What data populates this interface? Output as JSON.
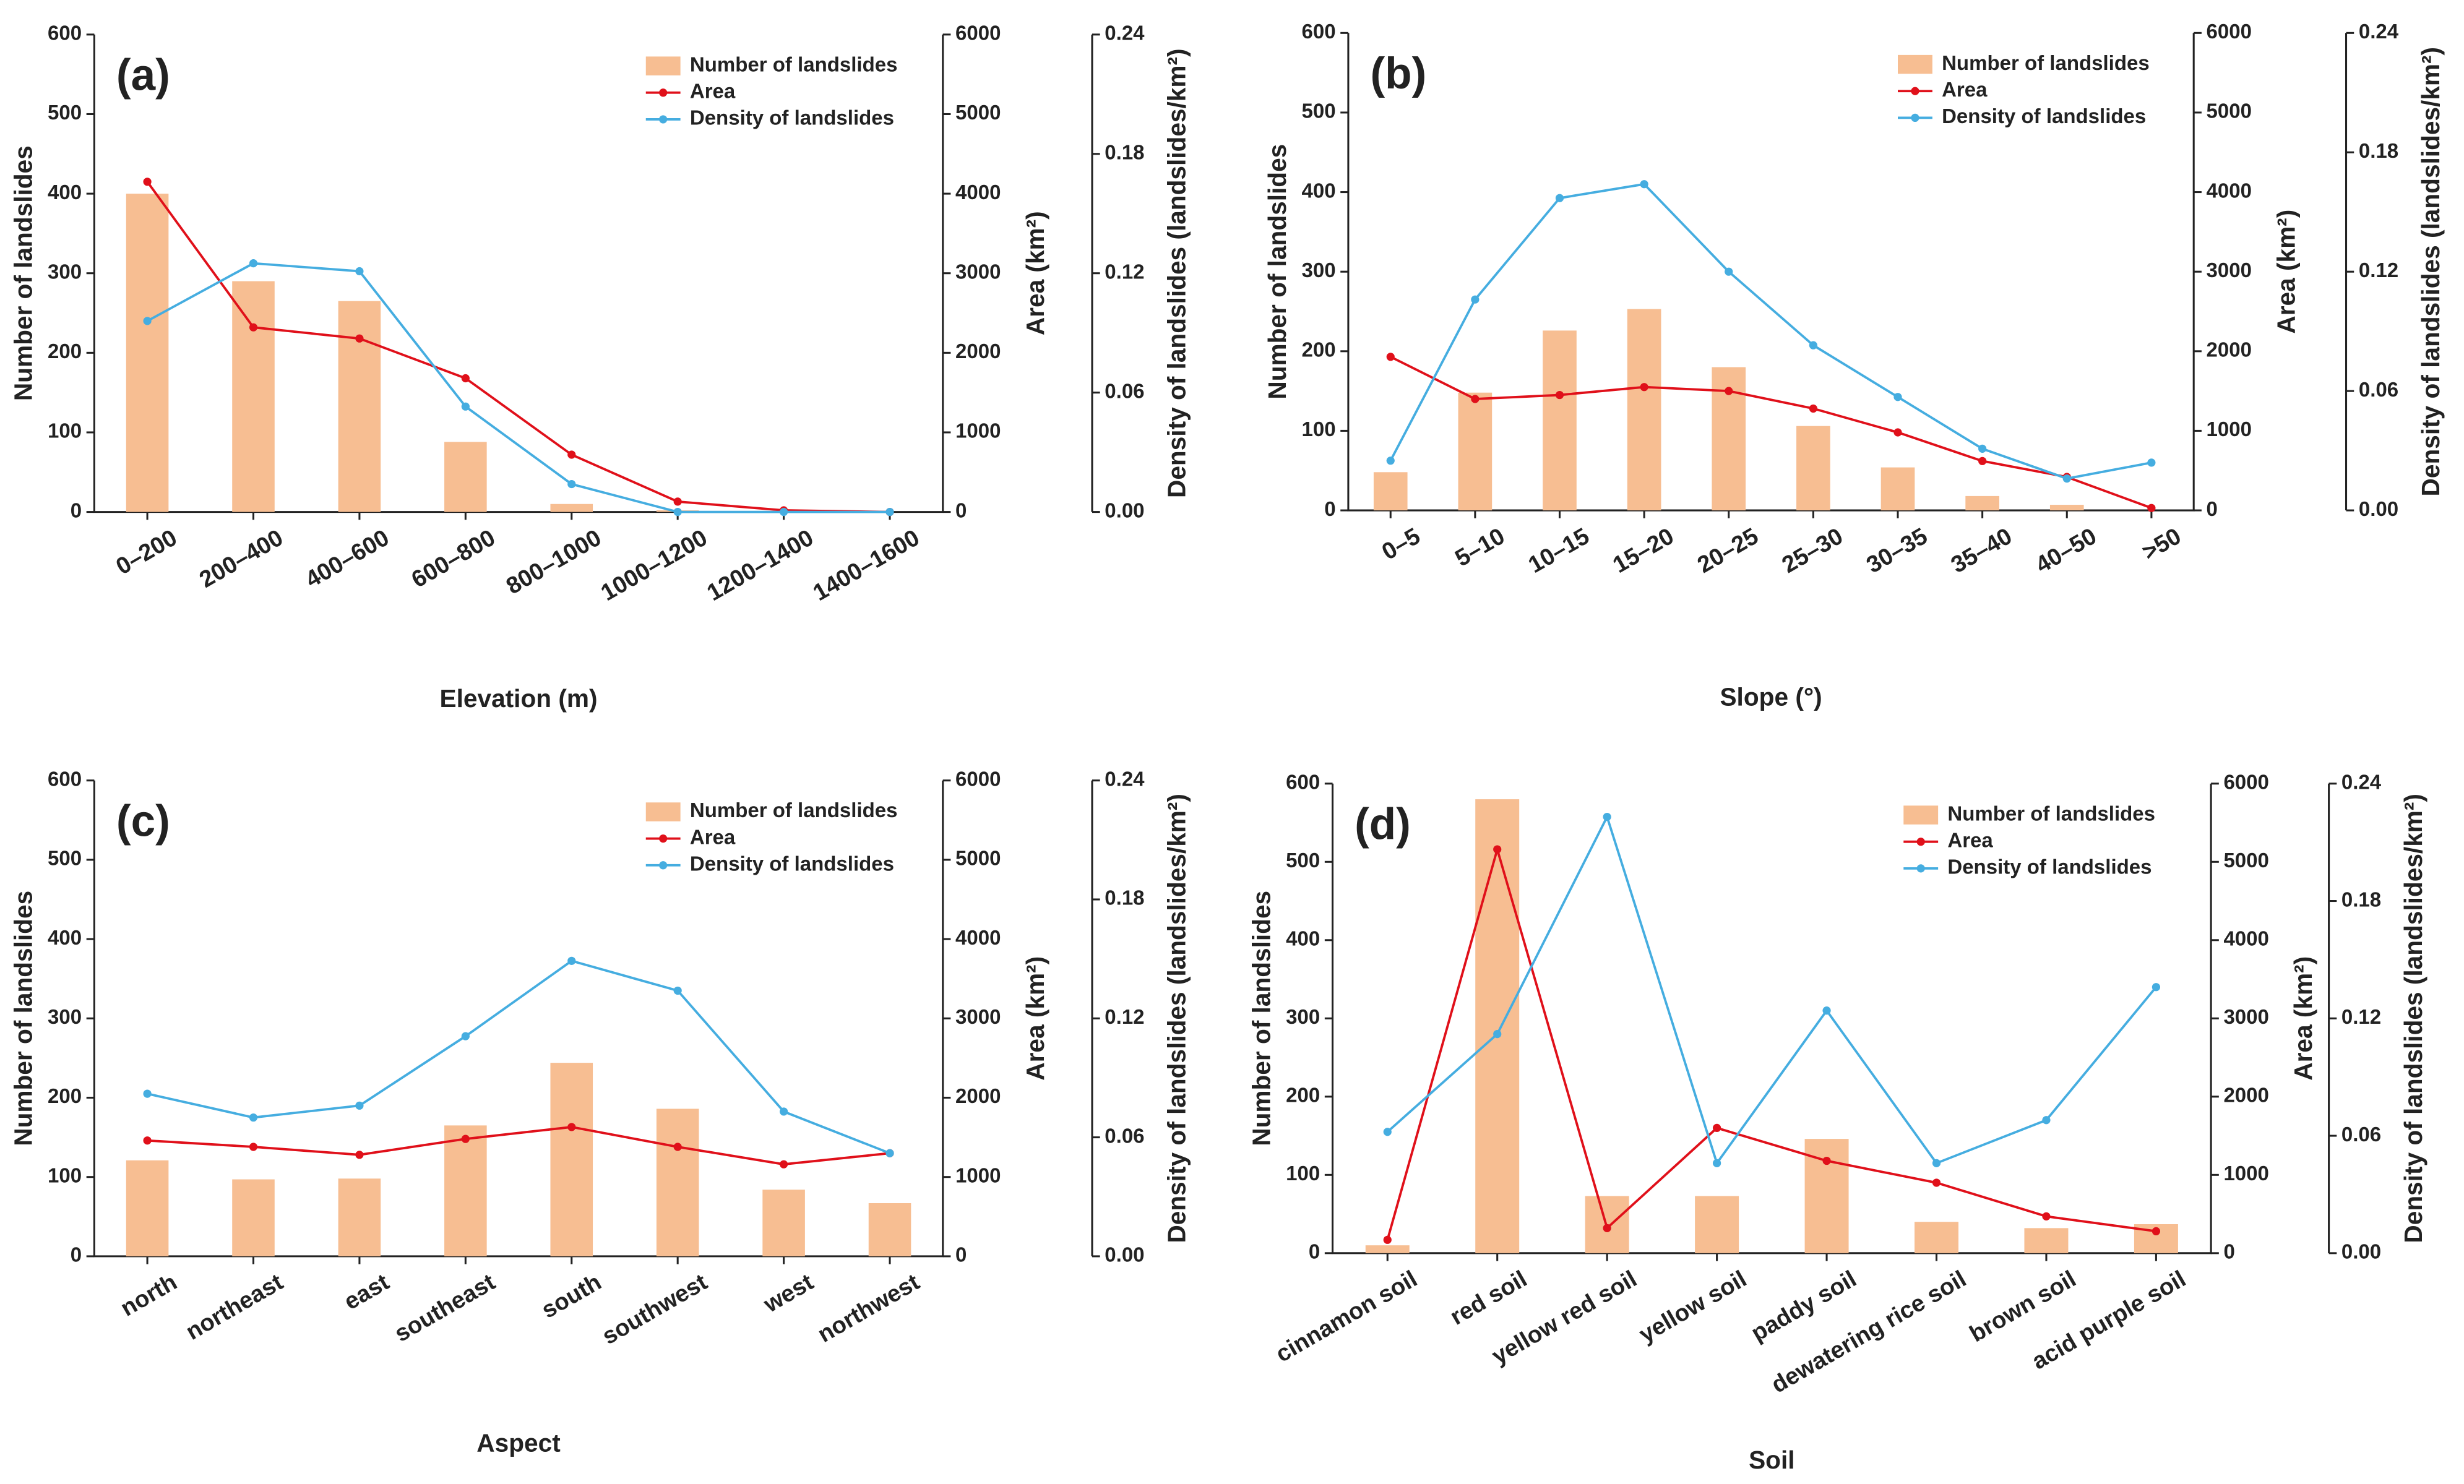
{
  "chart_data": [
    {
      "type": "combo",
      "panel_label": "(a)",
      "xlabel": "Elevation (m)",
      "ylabel": "Number of landslides",
      "y2label": "Area (km²)",
      "y3label": "Density of landslides (landslides/km²)",
      "legend": "upper right",
      "categories": [
        "0–200",
        "200–400",
        "400–600",
        "600–800",
        "800–1000",
        "1000–1200",
        "1200–1400",
        "1400–1600"
      ],
      "series": [
        {
          "name": "Number of landslides",
          "type": "bar",
          "axis": "y",
          "color": "#f7be92",
          "values": [
            400,
            290,
            265,
            88,
            10,
            2,
            0,
            0
          ]
        },
        {
          "name": "Area",
          "type": "line",
          "axis": "y2",
          "color": "#e0101a",
          "values": [
            4150,
            2320,
            2180,
            1680,
            720,
            130,
            20,
            0
          ]
        },
        {
          "name": "Density of landslides",
          "type": "line",
          "axis": "y3",
          "color": "#45ade0",
          "values": [
            0.096,
            0.125,
            0.121,
            0.053,
            0.014,
            0,
            0,
            0
          ]
        }
      ],
      "ylim": [
        0,
        600
      ],
      "yticks": [
        0,
        100,
        200,
        300,
        400,
        500,
        600
      ],
      "y2lim": [
        0,
        6000
      ],
      "y2ticks": [
        0,
        1000,
        2000,
        3000,
        4000,
        5000,
        6000
      ],
      "y3lim": [
        0,
        0.24
      ],
      "y3ticks": [
        {
          "value": 0,
          "label": "0.00"
        },
        0.06,
        0.12,
        0.18,
        0.24
      ]
    },
    {
      "type": "combo",
      "panel_label": "(b)",
      "xlabel": "Slope (°)",
      "ylabel": "Number of landslides",
      "y2label": "Area (km²)",
      "y3label": "Density of landslides (landslides/km²)",
      "legend": "upper right",
      "categories": [
        "0–5",
        "5–10",
        "10–15",
        "15–20",
        "20–25",
        "25–30",
        "30–35",
        "35–40",
        "40–50",
        ">50"
      ],
      "series": [
        {
          "name": "Number of landslides",
          "type": "bar",
          "axis": "y",
          "color": "#f7be92",
          "values": [
            48,
            148,
            226,
            253,
            180,
            106,
            54,
            18,
            7,
            0
          ]
        },
        {
          "name": "Area",
          "type": "line",
          "axis": "y2",
          "color": "#e0101a",
          "values": [
            1930,
            1400,
            1450,
            1550,
            1500,
            1280,
            980,
            620,
            420,
            30
          ]
        },
        {
          "name": "Density of landslides",
          "type": "line",
          "axis": "y3",
          "color": "#45ade0",
          "values": [
            0.025,
            0.106,
            0.157,
            0.164,
            0.12,
            0.083,
            0.057,
            0.031,
            0.016,
            0.024
          ]
        }
      ],
      "ylim": [
        0,
        600
      ],
      "yticks": [
        0,
        100,
        200,
        300,
        400,
        500,
        600
      ],
      "y2lim": [
        0,
        6000
      ],
      "y2ticks": [
        0,
        1000,
        2000,
        3000,
        4000,
        5000,
        6000
      ],
      "y3lim": [
        0,
        0.24
      ],
      "y3ticks": [
        {
          "value": 0,
          "label": "0.00"
        },
        0.06,
        0.12,
        0.18,
        0.24
      ]
    },
    {
      "type": "combo",
      "panel_label": "(c)",
      "xlabel": "Aspect",
      "ylabel": "Number of landslides",
      "y2label": "Area (km²)",
      "y3label": "Density of landslides (landslides/km²)",
      "legend": "upper right",
      "categories": [
        "north",
        "northeast",
        "east",
        "southeast",
        "south",
        "southwest",
        "west",
        "northwest"
      ],
      "series": [
        {
          "name": "Number of landslides",
          "type": "bar",
          "axis": "y",
          "color": "#f7be92",
          "values": [
            121,
            97,
            98,
            165,
            244,
            186,
            84,
            67
          ]
        },
        {
          "name": "Area",
          "type": "line",
          "axis": "y2",
          "color": "#e0101a",
          "values": [
            1460,
            1380,
            1280,
            1480,
            1630,
            1380,
            1160,
            1300
          ]
        },
        {
          "name": "Density of landslides",
          "type": "line",
          "axis": "y3",
          "color": "#45ade0",
          "values": [
            0.082,
            0.07,
            0.076,
            0.111,
            0.149,
            0.134,
            0.073,
            0.052
          ]
        }
      ],
      "ylim": [
        0,
        600
      ],
      "yticks": [
        0,
        100,
        200,
        300,
        400,
        500,
        600
      ],
      "y2lim": [
        0,
        6000
      ],
      "y2ticks": [
        0,
        1000,
        2000,
        3000,
        4000,
        5000,
        6000
      ],
      "y3lim": [
        0,
        0.24
      ],
      "y3ticks": [
        {
          "value": 0,
          "label": "0.00"
        },
        0.06,
        0.12,
        0.18,
        0.24
      ]
    },
    {
      "type": "combo",
      "panel_label": "(d)",
      "xlabel": "Soil",
      "ylabel": "Number of landslides",
      "y2label": "Area (km²)",
      "y3label": "Density of landslides (landslides/km²)",
      "legend": "upper right",
      "categories": [
        "cinnamon soil",
        "red soil",
        "yellow red soil",
        "yellow soil",
        "paddy soil",
        "dewatering rice soil",
        "brown soil",
        "acid purple soil"
      ],
      "series": [
        {
          "name": "Number of landslides",
          "type": "bar",
          "axis": "y",
          "color": "#f7be92",
          "values": [
            10,
            580,
            73,
            73,
            146,
            40,
            32,
            37
          ]
        },
        {
          "name": "Area",
          "type": "line",
          "axis": "y2",
          "color": "#e0101a",
          "values": [
            170,
            5160,
            320,
            1600,
            1180,
            900,
            470,
            280
          ]
        },
        {
          "name": "Density of landslides",
          "type": "line",
          "axis": "y3",
          "color": "#45ade0",
          "values": [
            0.062,
            0.112,
            0.223,
            0.046,
            0.124,
            0.046,
            0.068,
            0.136
          ]
        }
      ],
      "ylim": [
        0,
        600
      ],
      "yticks": [
        0,
        100,
        200,
        300,
        400,
        500,
        600
      ],
      "y2lim": [
        0,
        6000
      ],
      "y2ticks": [
        0,
        1000,
        2000,
        3000,
        4000,
        5000,
        6000
      ],
      "y3lim": [
        0,
        0.24
      ],
      "y3ticks": [
        {
          "value": 0,
          "label": "0.00"
        },
        0.06,
        0.12,
        0.18,
        0.24
      ]
    }
  ]
}
